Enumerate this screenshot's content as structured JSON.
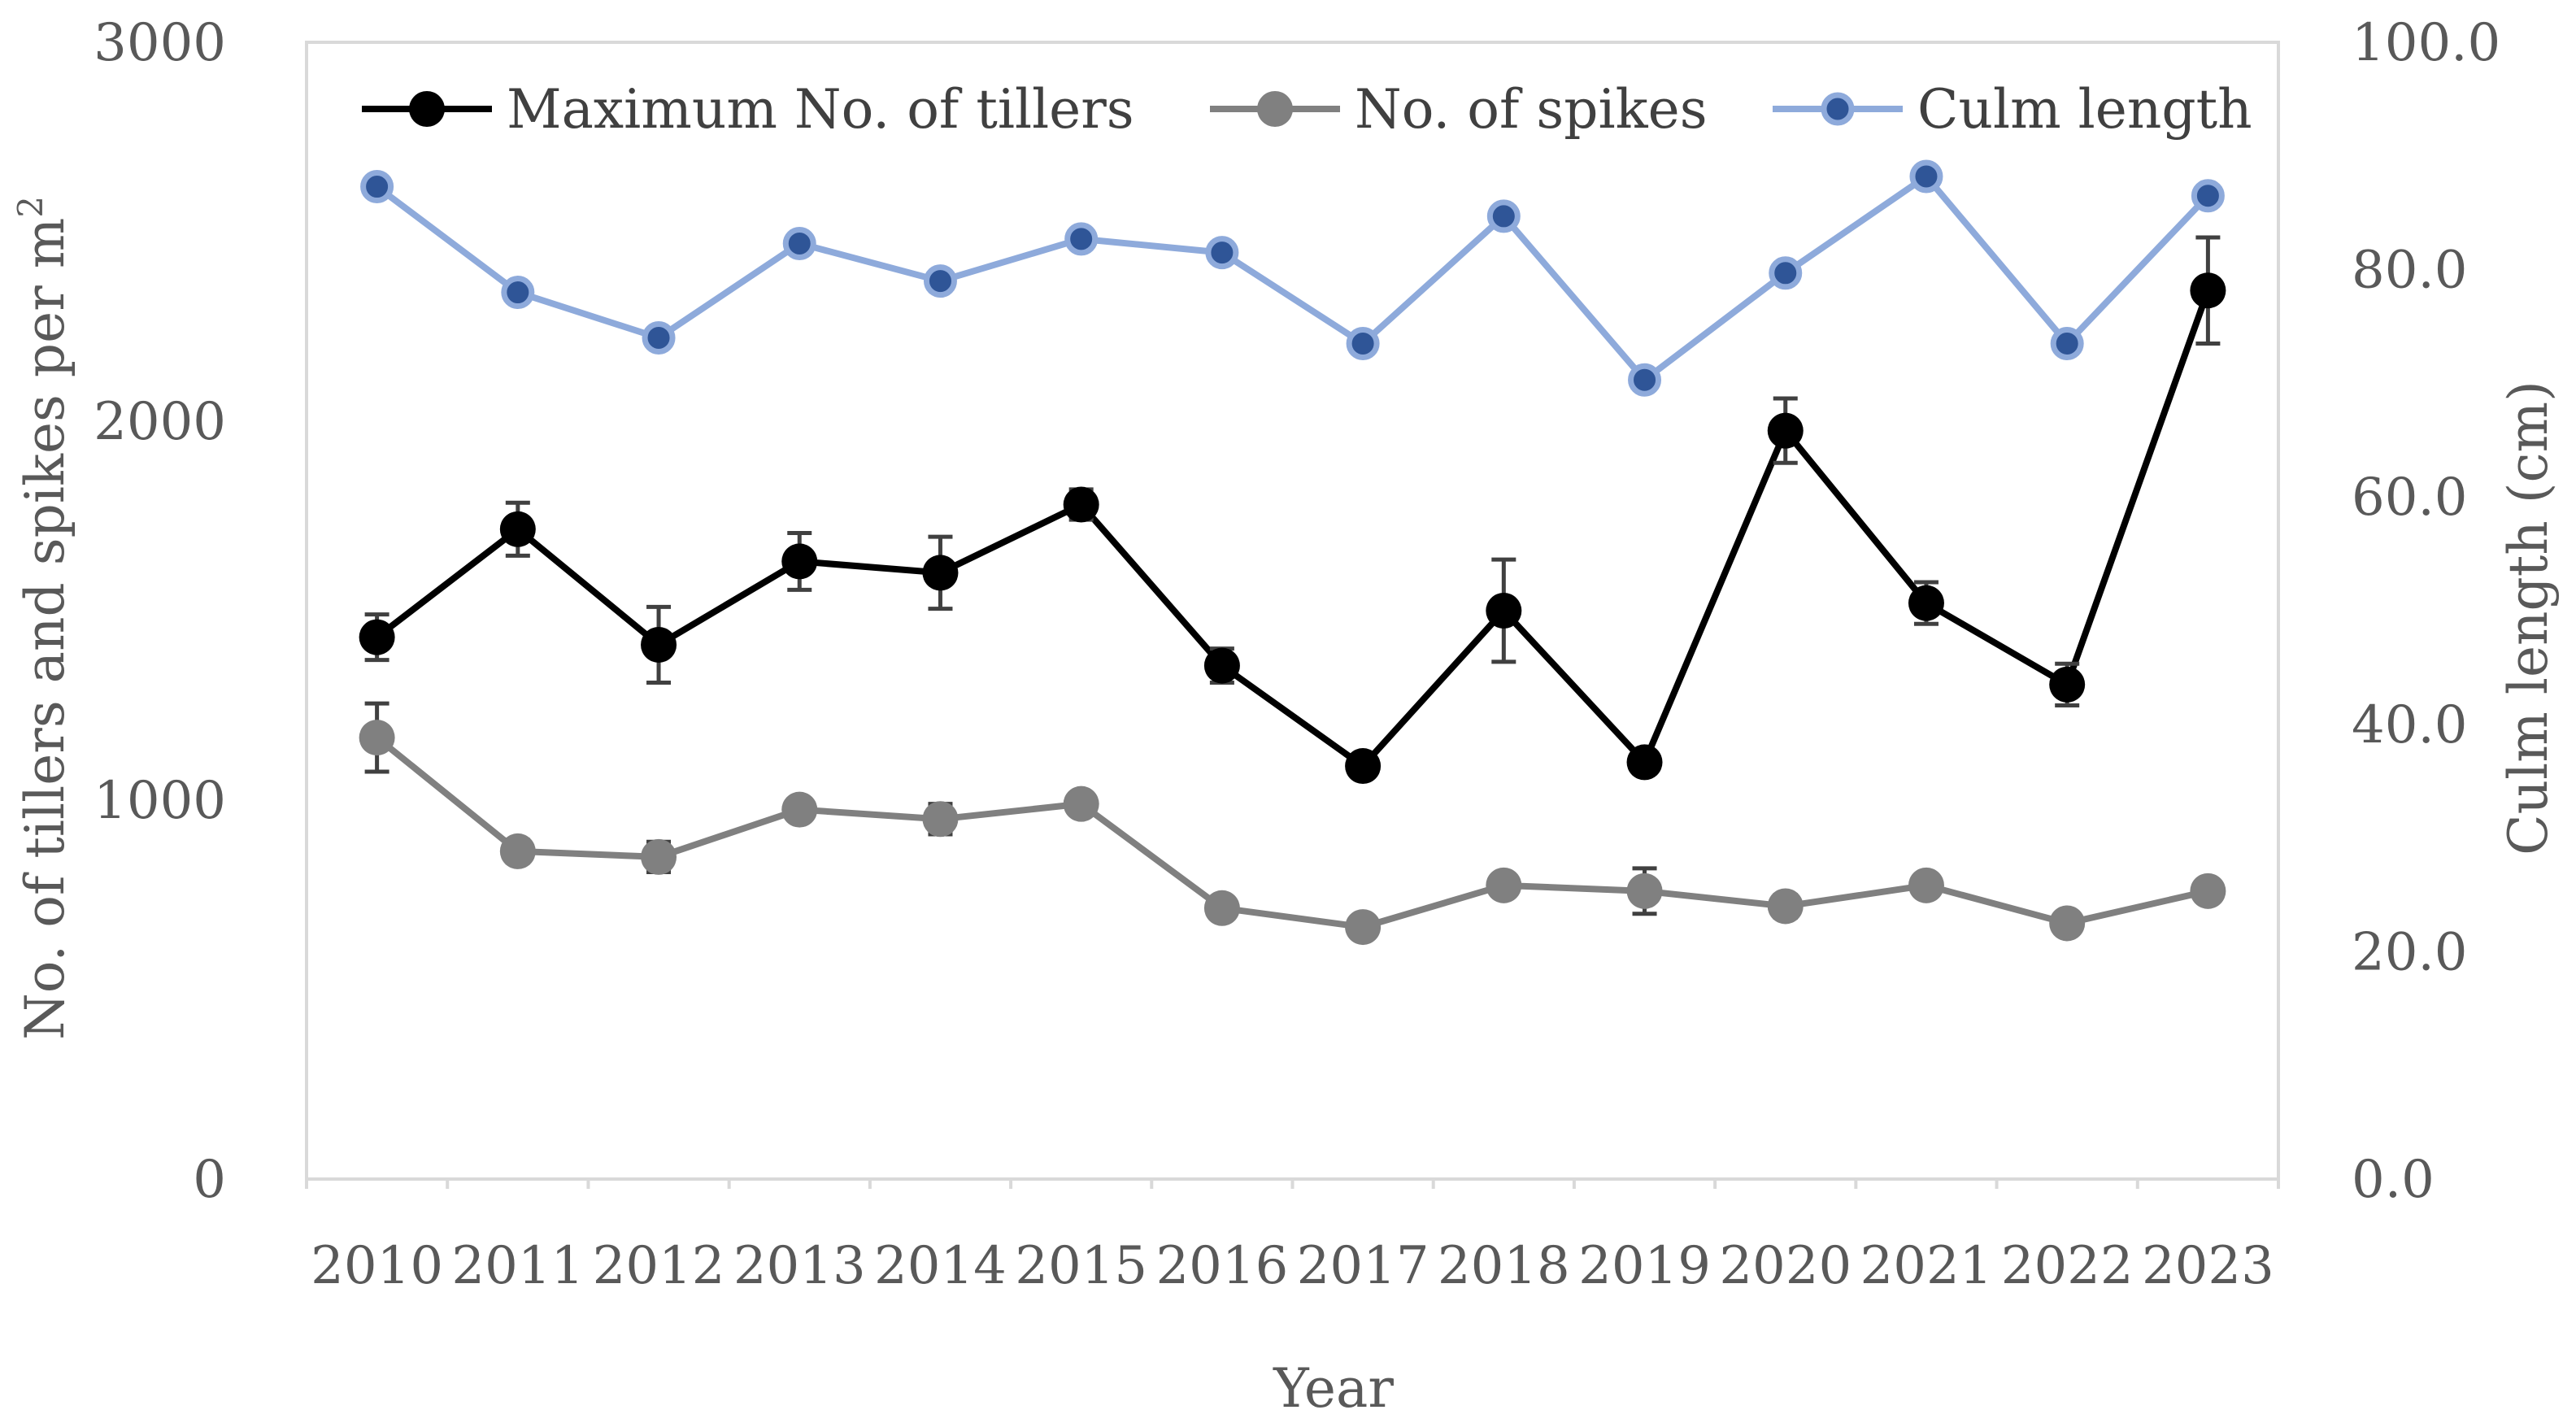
{
  "chart_data": {
    "type": "line",
    "title": "",
    "xlabel": "Year",
    "ylabel": "No. of tillers and spikes per m²",
    "ylabel_main": "No. of tillers and spikes per m",
    "ylabel_sup": "2",
    "y2label": "Culm length (cm)",
    "ylim": [
      0,
      3000
    ],
    "y2lim": [
      0,
      100
    ],
    "yticks": [
      "0",
      "1000",
      "2000",
      "3000"
    ],
    "y2ticks": [
      "0.0",
      "20.0",
      "40.0",
      "60.0",
      "80.0",
      "100.0"
    ],
    "categories": [
      "2010",
      "2011",
      "2012",
      "2013",
      "2014",
      "2015",
      "2016",
      "2017",
      "2018",
      "2019",
      "2020",
      "2021",
      "2022",
      "2023"
    ],
    "legend_position": "top",
    "series": [
      {
        "name": "Maximum No. of tillers",
        "axis": "left",
        "color": "#000000",
        "marker_fill": "#000000",
        "values": [
          1430,
          1715,
          1410,
          1630,
          1600,
          1780,
          1355,
          1090,
          1500,
          1100,
          1975,
          1520,
          1305,
          2345
        ],
        "errors": [
          60,
          70,
          100,
          75,
          95,
          40,
          45,
          20,
          135,
          30,
          85,
          55,
          55,
          140
        ]
      },
      {
        "name": "No. of spikes",
        "axis": "left",
        "color": "#808080",
        "marker_fill": "#808080",
        "values": [
          1165,
          865,
          850,
          975,
          950,
          990,
          715,
          665,
          775,
          760,
          720,
          775,
          675,
          760
        ],
        "errors": [
          90,
          30,
          40,
          25,
          40,
          20,
          25,
          15,
          25,
          60,
          30,
          25,
          25,
          20
        ]
      },
      {
        "name": "Culm length",
        "axis": "right",
        "color": "#8EAADB",
        "marker_fill": "#2F5597",
        "values": [
          87.3,
          78.0,
          74.0,
          82.3,
          79.0,
          82.7,
          81.5,
          73.5,
          84.7,
          70.3,
          79.7,
          88.2,
          73.5,
          86.5
        ],
        "errors": [
          0,
          0,
          0,
          0,
          0,
          0,
          0,
          0,
          0,
          0,
          0,
          0,
          0,
          0
        ]
      }
    ]
  }
}
